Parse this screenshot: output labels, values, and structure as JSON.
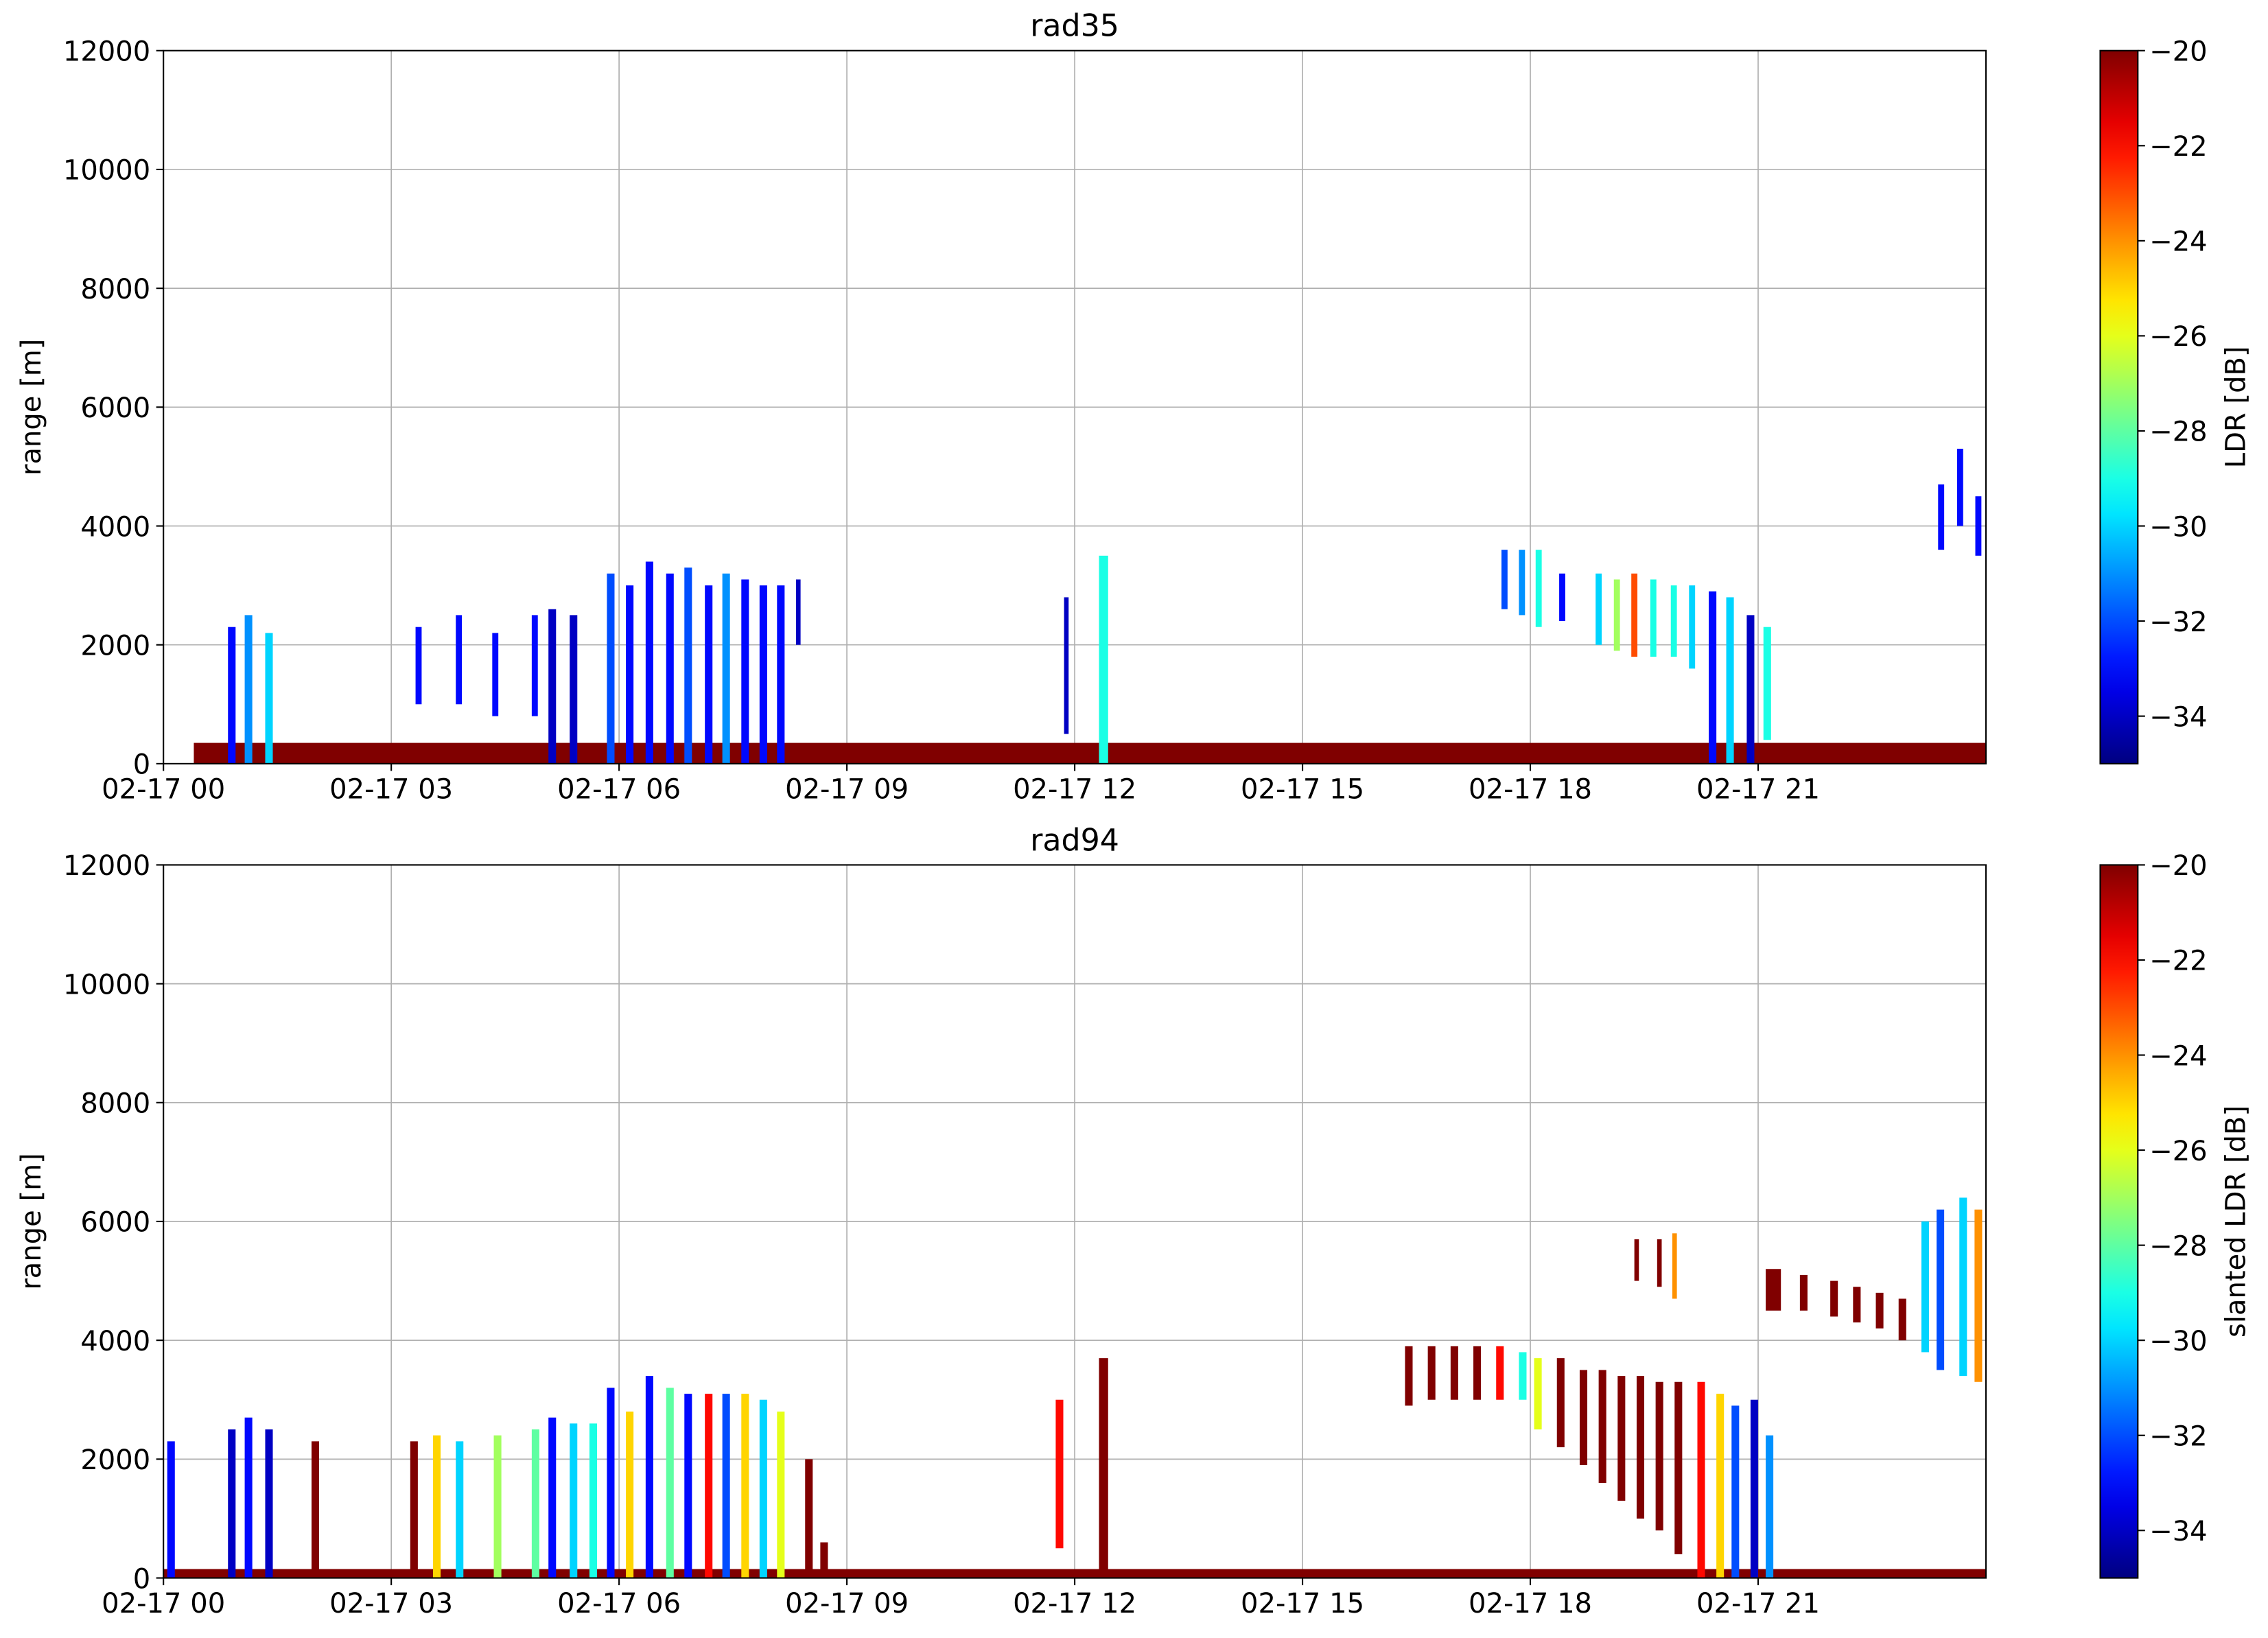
{
  "chart_data": [
    {
      "type": "heatmap",
      "title": "rad35",
      "ylabel": "range [m]",
      "colorbar_label": "LDR [dB]",
      "cmap": "jet",
      "grid": true,
      "xlim": [
        0,
        24
      ],
      "xticks": [
        {
          "value": 0,
          "label": "02-17 00"
        },
        {
          "value": 3,
          "label": "02-17 03"
        },
        {
          "value": 6,
          "label": "02-17 06"
        },
        {
          "value": 9,
          "label": "02-17 09"
        },
        {
          "value": 12,
          "label": "02-17 12"
        },
        {
          "value": 15,
          "label": "02-17 15"
        },
        {
          "value": 18,
          "label": "02-17 18"
        },
        {
          "value": 21,
          "label": "02-17 21"
        }
      ],
      "ylim": [
        0,
        12000
      ],
      "yticks": [
        0,
        2000,
        4000,
        6000,
        8000,
        10000,
        12000
      ],
      "clim": [
        -35,
        -20
      ],
      "cticks": [
        {
          "value": -20,
          "label": "−20"
        },
        {
          "value": -22,
          "label": "−22"
        },
        {
          "value": -24,
          "label": "−24"
        },
        {
          "value": -26,
          "label": "−26"
        },
        {
          "value": -28,
          "label": "−28"
        },
        {
          "value": -30,
          "label": "−30"
        },
        {
          "value": -32,
          "label": "−32"
        },
        {
          "value": -34,
          "label": "−34"
        }
      ],
      "x_start": [
        0.4,
        0.85,
        1.07,
        1.34,
        3.32,
        3.85,
        4.33,
        4.85,
        5.07,
        5.35,
        5.84,
        6.09,
        6.35,
        6.62,
        6.86,
        7.13,
        7.36,
        7.61,
        7.85,
        8.08,
        8.33,
        11.86,
        12.32,
        17.62,
        17.85,
        18.07,
        18.38,
        18.86,
        19.1,
        19.33,
        19.58,
        19.85,
        20.09,
        20.35,
        20.58,
        20.85,
        21.07,
        23.37,
        23.62,
        23.86
      ],
      "x_end": [
        24,
        0.95,
        1.17,
        1.44,
        3.4,
        3.93,
        4.41,
        4.93,
        5.17,
        5.45,
        5.94,
        6.19,
        6.45,
        6.72,
        6.96,
        7.23,
        7.46,
        7.71,
        7.95,
        8.18,
        8.39,
        11.92,
        12.44,
        17.7,
        17.93,
        18.15,
        18.46,
        18.94,
        19.18,
        19.41,
        19.66,
        19.93,
        20.17,
        20.45,
        20.68,
        20.95,
        21.17,
        23.45,
        23.7,
        23.94
      ],
      "y_bottom": [
        0,
        0,
        0,
        0,
        1000,
        1000,
        800,
        800,
        0,
        0,
        0,
        0,
        0,
        0,
        0,
        0,
        0,
        0,
        0,
        0,
        2000,
        500,
        0,
        2600,
        2500,
        2300,
        2400,
        2000,
        1900,
        1800,
        1800,
        1800,
        1600,
        0,
        0,
        0,
        400,
        3600,
        4000,
        3500
      ],
      "y_top": [
        350,
        2300,
        2500,
        2200,
        2300,
        2500,
        2200,
        2500,
        2600,
        2500,
        3200,
        3000,
        3400,
        3200,
        3300,
        3000,
        3200,
        3100,
        3000,
        3000,
        3100,
        2800,
        3500,
        3600,
        3600,
        3600,
        3200,
        3200,
        3100,
        3200,
        3100,
        3000,
        3000,
        2900,
        2800,
        2500,
        2300,
        4700,
        5300,
        4500
      ],
      "values": [
        -20,
        -33,
        -31,
        -30,
        -33,
        -33,
        -33,
        -33,
        -34,
        -34,
        -32,
        -33,
        -33,
        -33,
        -32,
        -33,
        -31,
        -33,
        -33,
        -33,
        -34,
        -34,
        -29,
        -32,
        -31,
        -29,
        -33,
        -30,
        -27,
        -23,
        -29,
        -29,
        -30,
        -33,
        -30,
        -34,
        -29,
        -33,
        -33,
        -33
      ]
    },
    {
      "type": "heatmap",
      "title": "rad94",
      "ylabel": "range [m]",
      "colorbar_label": "slanted LDR [dB]",
      "cmap": "jet",
      "grid": true,
      "xlim": [
        0,
        24
      ],
      "xticks": [
        {
          "value": 0,
          "label": "02-17 00"
        },
        {
          "value": 3,
          "label": "02-17 03"
        },
        {
          "value": 6,
          "label": "02-17 06"
        },
        {
          "value": 9,
          "label": "02-17 09"
        },
        {
          "value": 12,
          "label": "02-17 12"
        },
        {
          "value": 15,
          "label": "02-17 15"
        },
        {
          "value": 18,
          "label": "02-17 18"
        },
        {
          "value": 21,
          "label": "02-17 21"
        }
      ],
      "ylim": [
        0,
        12000
      ],
      "yticks": [
        0,
        2000,
        4000,
        6000,
        8000,
        10000,
        12000
      ],
      "clim": [
        -35,
        -20
      ],
      "cticks": [
        {
          "value": -20,
          "label": "−20"
        },
        {
          "value": -22,
          "label": "−22"
        },
        {
          "value": -24,
          "label": "−24"
        },
        {
          "value": -26,
          "label": "−26"
        },
        {
          "value": -28,
          "label": "−28"
        },
        {
          "value": -30,
          "label": "−30"
        },
        {
          "value": -32,
          "label": "−32"
        },
        {
          "value": -34,
          "label": "−34"
        }
      ],
      "x_start": [
        0,
        0.05,
        0.85,
        1.07,
        1.34,
        1.95,
        3.25,
        3.55,
        3.85,
        4.35,
        4.85,
        5.07,
        5.35,
        5.61,
        5.84,
        6.09,
        6.35,
        6.62,
        6.86,
        7.13,
        7.36,
        7.61,
        7.85,
        8.08,
        8.45,
        8.65,
        11.75,
        12.32,
        16.35,
        16.65,
        16.95,
        17.25,
        17.55,
        17.85,
        18.05,
        18.35,
        18.65,
        18.9,
        19.15,
        19.4,
        19.65,
        19.9,
        20.2,
        20.45,
        20.65,
        20.9,
        21.1,
        19.37,
        19.67,
        19.87,
        21.1,
        21.55,
        21.95,
        22.25,
        22.55,
        22.85,
        23.15,
        23.35,
        23.65,
        23.85
      ],
      "x_end": [
        24,
        0.15,
        0.95,
        1.17,
        1.44,
        2.05,
        3.35,
        3.65,
        3.95,
        4.45,
        4.95,
        5.17,
        5.45,
        5.71,
        5.94,
        6.19,
        6.45,
        6.72,
        6.96,
        7.23,
        7.46,
        7.71,
        7.95,
        8.18,
        8.55,
        8.75,
        11.85,
        12.44,
        16.45,
        16.75,
        17.05,
        17.35,
        17.65,
        17.95,
        18.15,
        18.45,
        18.75,
        19.0,
        19.25,
        19.5,
        19.75,
        20.0,
        20.3,
        20.55,
        20.75,
        21.0,
        21.2,
        19.43,
        19.73,
        19.93,
        21.3,
        21.65,
        22.05,
        22.35,
        22.65,
        22.95,
        23.25,
        23.45,
        23.75,
        23.95
      ],
      "y_bottom": [
        0,
        0,
        0,
        0,
        0,
        0,
        0,
        0,
        0,
        0,
        0,
        0,
        0,
        0,
        0,
        0,
        0,
        0,
        0,
        0,
        0,
        0,
        0,
        0,
        0,
        0,
        500,
        0,
        2900,
        3000,
        3000,
        3000,
        3000,
        3000,
        2500,
        2200,
        1900,
        1600,
        1300,
        1000,
        800,
        400,
        0,
        0,
        0,
        0,
        0,
        5000,
        4900,
        4700,
        4500,
        4500,
        4400,
        4300,
        4200,
        4000,
        3800,
        3500,
        3400,
        3300
      ],
      "y_top": [
        150,
        2300,
        2500,
        2700,
        2500,
        2300,
        2300,
        2400,
        2300,
        2400,
        2500,
        2700,
        2600,
        2600,
        3200,
        2800,
        3400,
        3200,
        3100,
        3100,
        3100,
        3100,
        3000,
        2800,
        2000,
        600,
        3000,
        3700,
        3900,
        3900,
        3900,
        3900,
        3900,
        3800,
        3700,
        3700,
        3500,
        3500,
        3400,
        3400,
        3300,
        3300,
        3300,
        3100,
        2900,
        3000,
        2400,
        5700,
        5700,
        5800,
        5200,
        5100,
        5000,
        4900,
        4800,
        4700,
        6000,
        6200,
        6400,
        6200
      ],
      "values": [
        -20,
        -33,
        -34,
        -33,
        -34,
        -20,
        -20,
        -25,
        -30,
        -27,
        -28,
        -33,
        -30,
        -29,
        -33,
        -25,
        -33,
        -28,
        -33,
        -22,
        -32,
        -25,
        -30,
        -26,
        -20,
        -20,
        -22,
        -20,
        -20,
        -20,
        -20,
        -20,
        -22,
        -29,
        -26,
        -20,
        -20,
        -20,
        -20,
        -20,
        -20,
        -20,
        -22,
        -25,
        -32,
        -34,
        -31,
        -20,
        -20,
        -24,
        -20,
        -20,
        -20,
        -20,
        -20,
        -20,
        -30,
        -32,
        -30,
        -24
      ]
    }
  ]
}
